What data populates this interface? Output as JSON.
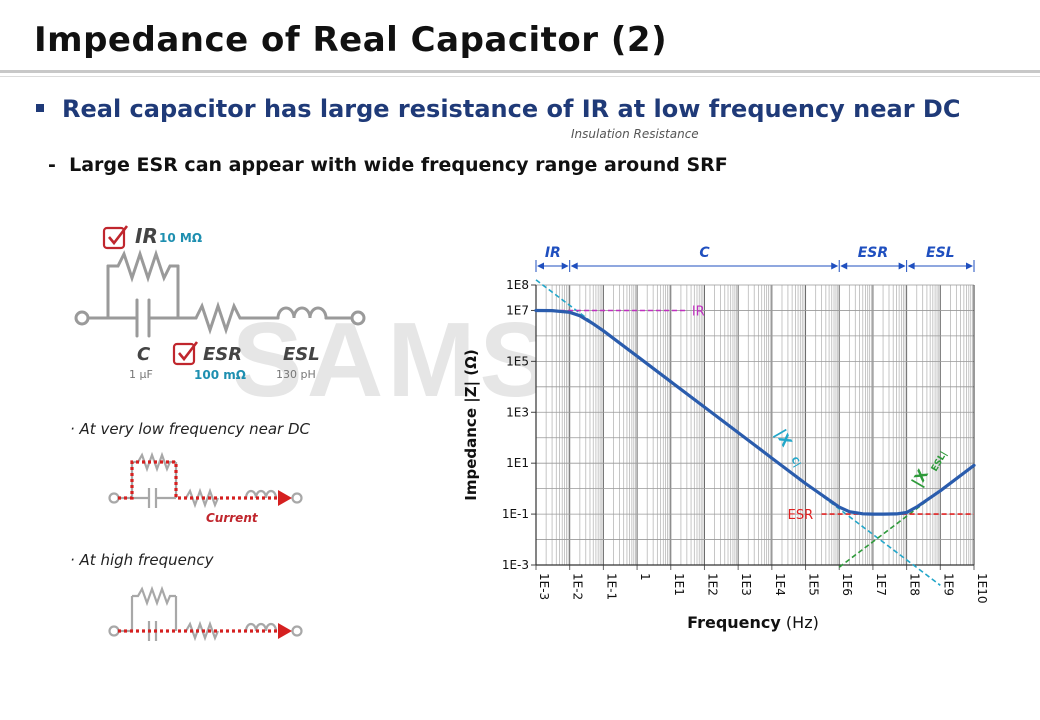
{
  "slide": {
    "title": "Impedance of Real Capacitor (2)",
    "main_point": "Real capacitor has large resistance of IR at low frequency near DC",
    "main_note": "Insulation Resistance",
    "sub_point": "Large ESR can appear with wide frequency range around SRF",
    "sub_dash": "-",
    "watermark": "SAMSUNG"
  },
  "circuit": {
    "ir_label": "IR",
    "ir_value": "10 MΩ",
    "c_label": "C",
    "c_value": "1 μF",
    "esr_label": "ESR",
    "esr_value": "100 mΩ",
    "esl_label": "ESL",
    "esl_value": "130 pH",
    "low_freq_caption": "· At very low frequency near DC",
    "current_label": "Current",
    "high_freq_caption": "· At high frequency"
  },
  "colors": {
    "title_blue": "#1f3a78",
    "check_red": "#c0262d",
    "value_teal": "#1e8fb0",
    "curve_blue": "#2a5cad",
    "xc_cyan": "#22a6c9",
    "xesl_green": "#2e9a3a",
    "ir_magenta": "#c030c0",
    "esr_red": "#e02020",
    "region_blue": "#1f4fbf"
  },
  "chart_data": {
    "type": "line",
    "xlabel_bold": "Frequency",
    "xlabel_unit": "(Hz)",
    "ylabel": "Impedance |Z| (Ω)",
    "x_scale": "log",
    "y_scale": "log",
    "xlim": [
      0.001,
      10000000000
    ],
    "ylim": [
      0.001,
      100000000
    ],
    "x_ticks": [
      {
        "value": 0.001,
        "label": "1E-3"
      },
      {
        "value": 0.01,
        "label": "1E-2"
      },
      {
        "value": 0.1,
        "label": "1E-1"
      },
      {
        "value": 1,
        "label": "1"
      },
      {
        "value": 10,
        "label": "1E1"
      },
      {
        "value": 100,
        "label": "1E2"
      },
      {
        "value": 1000,
        "label": "1E3"
      },
      {
        "value": 10000,
        "label": "1E4"
      },
      {
        "value": 100000,
        "label": "1E5"
      },
      {
        "value": 1000000,
        "label": "1E6"
      },
      {
        "value": 10000000,
        "label": "1E7"
      },
      {
        "value": 100000000,
        "label": "1E8"
      },
      {
        "value": 1000000000,
        "label": "1E9"
      },
      {
        "value": 10000000000,
        "label": "1E10"
      }
    ],
    "y_ticks": [
      {
        "value": 0.001,
        "label": "1E-3"
      },
      {
        "value": 0.1,
        "label": "1E-1"
      },
      {
        "value": 10,
        "label": "1E1"
      },
      {
        "value": 1000,
        "label": "1E3"
      },
      {
        "value": 100000,
        "label": "1E5"
      },
      {
        "value": 10000000,
        "label": "1E7"
      },
      {
        "value": 100000000,
        "label": "1E8"
      }
    ],
    "grid": true,
    "series": [
      {
        "label": "|Z|",
        "x": [
          0.001,
          0.003,
          0.01,
          0.02,
          0.05,
          0.1,
          1,
          10,
          100,
          1000,
          10000,
          100000,
          1000000,
          2000000,
          5000000,
          10000000,
          20000000,
          50000000,
          100000000,
          200000000,
          1000000000,
          10000000000
        ],
        "y": [
          10000000,
          9900000,
          8500000,
          6200000,
          3000000,
          1590000,
          159000,
          15900,
          1590,
          159,
          15.9,
          1.59,
          0.188,
          0.124,
          0.103,
          0.1,
          0.1,
          0.102,
          0.116,
          0.192,
          0.82,
          8.17
        ]
      },
      {
        "label": "|Xc|",
        "x": [
          0.001,
          1000000000
        ],
        "y": [
          159000000,
          0.000159
        ]
      },
      {
        "label": "|XESL|",
        "x": [
          1000000,
          10000000000
        ],
        "y": [
          0.000817,
          8.17
        ]
      },
      {
        "label": "IR",
        "x": [
          0.001,
          30
        ],
        "y": [
          10000000,
          10000000
        ]
      },
      {
        "label": "ESR",
        "x": [
          300000,
          10000000000
        ],
        "y": [
          0.1,
          0.1
        ]
      }
    ],
    "regions": [
      {
        "label": "IR",
        "from": 0.001,
        "to": 0.01
      },
      {
        "label": "C",
        "from": 0.01,
        "to": 1000000
      },
      {
        "label": "ESR",
        "from": 1000000,
        "to": 100000000
      },
      {
        "label": "ESL",
        "from": 100000000,
        "to": 10000000000
      }
    ],
    "annotations": {
      "ir_text": "IR",
      "esr_text": "ESR",
      "xc_text": "|X",
      "xc_sub": "C",
      "xesl_text": "|X",
      "xesl_sub": "ESL"
    }
  }
}
